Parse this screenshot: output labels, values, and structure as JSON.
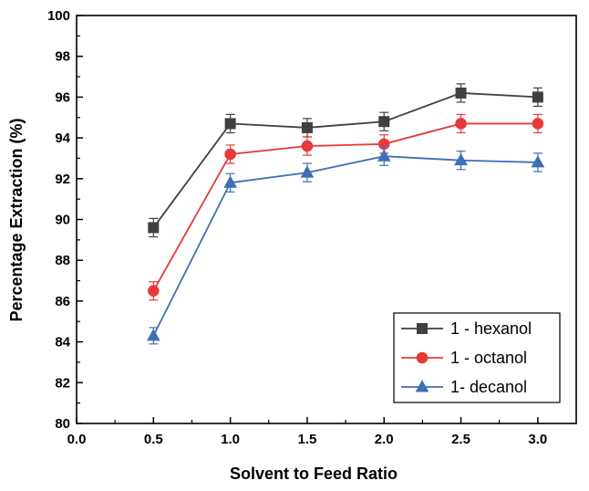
{
  "chart_data": {
    "type": "line",
    "xlabel": "Solvent to Feed Ratio",
    "ylabel": "Percentage Extraction (%)",
    "xlim": [
      0.0,
      3.25
    ],
    "ylim": [
      80,
      100
    ],
    "x_ticks": [
      "0.0",
      "0.5",
      "1.0",
      "1.5",
      "2.0",
      "2.5",
      "3.0"
    ],
    "y_ticks": [
      "80",
      "82",
      "84",
      "86",
      "88",
      "90",
      "92",
      "94",
      "96",
      "98",
      "100"
    ],
    "x": [
      0.5,
      1.0,
      1.5,
      2.0,
      2.5,
      3.0
    ],
    "series": [
      {
        "name": "1 - hexanol",
        "color": "#404040",
        "marker": "square",
        "values": [
          89.6,
          94.7,
          94.5,
          94.8,
          96.2,
          96.0
        ],
        "errors": [
          0.45,
          0.45,
          0.45,
          0.45,
          0.45,
          0.45
        ]
      },
      {
        "name": "1 - octanol",
        "color": "#e8393a",
        "marker": "circle",
        "values": [
          86.5,
          93.2,
          93.6,
          93.7,
          94.7,
          94.7
        ],
        "errors": [
          0.45,
          0.45,
          0.45,
          0.45,
          0.45,
          0.45
        ]
      },
      {
        "name": "1- decanol",
        "color": "#3f6fb5",
        "marker": "triangle",
        "values": [
          84.3,
          91.8,
          92.3,
          93.1,
          92.9,
          92.8
        ],
        "errors": [
          0.4,
          0.45,
          0.45,
          0.45,
          0.45,
          0.45
        ]
      }
    ],
    "grid": false,
    "legend_position": "bottom-right"
  }
}
